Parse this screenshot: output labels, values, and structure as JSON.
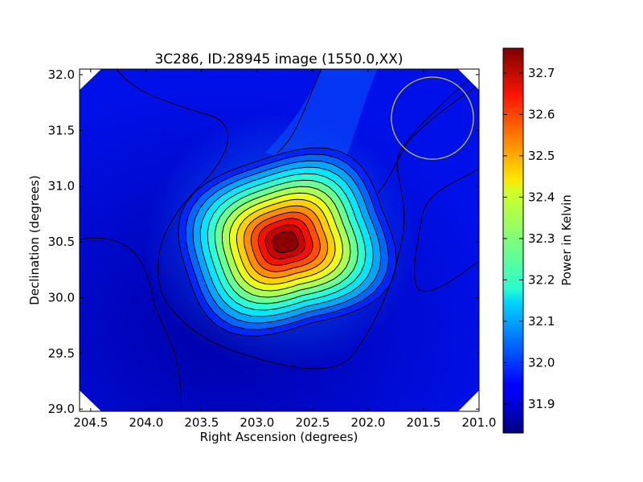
{
  "chart_data": {
    "type": "heatmap",
    "title": "3C286, ID:28945 image (1550.0,XX)",
    "xlabel": "Right Ascension (degrees)",
    "ylabel": "Declination (degrees)",
    "xlim": [
      204.6,
      201.0
    ],
    "ylim": [
      28.98,
      32.05
    ],
    "x_ticks": [
      204.5,
      204.0,
      203.5,
      203.0,
      202.5,
      202.0,
      201.5,
      201.0
    ],
    "x_tick_labels": [
      "204.5",
      "204.0",
      "203.5",
      "203.0",
      "202.5",
      "202.0",
      "201.5",
      "201.0"
    ],
    "y_ticks": [
      29.0,
      29.5,
      30.0,
      30.5,
      31.0,
      31.5,
      32.0
    ],
    "y_tick_labels": [
      "29.0",
      "29.5",
      "30.0",
      "30.5",
      "31.0",
      "31.5",
      "32.0"
    ],
    "source_peak": {
      "ra": 202.75,
      "dec": 30.5,
      "value": 32.75
    },
    "background_value": 31.9,
    "beam_circle": {
      "ra": 201.42,
      "dec": 31.61,
      "radius_deg": 0.37,
      "color": "#c8c84a"
    },
    "colorbar": {
      "label": "Power in Kelvin",
      "min": 31.83,
      "max": 32.76,
      "ticks": [
        31.9,
        32.0,
        32.1,
        32.2,
        32.3,
        32.4,
        32.5,
        32.6,
        32.7
      ],
      "tick_labels": [
        "31.9",
        "32.0",
        "32.1",
        "32.2",
        "32.3",
        "32.4",
        "32.5",
        "32.6",
        "32.7"
      ],
      "colormap": "jet"
    },
    "grid": false,
    "legend": "none"
  }
}
